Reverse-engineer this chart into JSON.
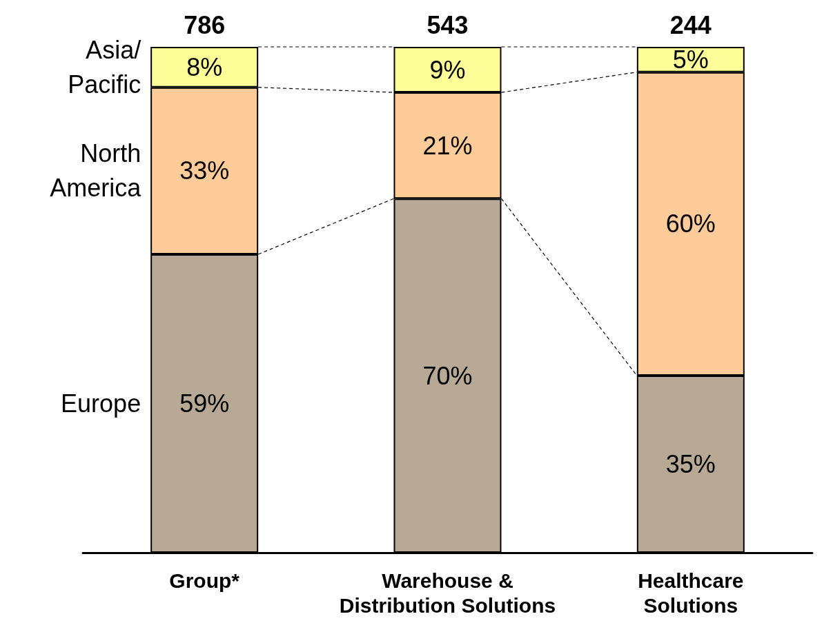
{
  "chart_data": {
    "type": "bar",
    "stacked": true,
    "categories": [
      "Group*",
      "Warehouse &\nDistribution Solutions",
      "Healthcare\nSolutions"
    ],
    "series": [
      {
        "name": "Europe",
        "color": "#b8a996",
        "values": [
          59,
          70,
          35
        ],
        "value_labels": [
          "59%",
          "70%",
          "35%"
        ]
      },
      {
        "name": "North\nAmerica",
        "color": "#ffcc99",
        "values": [
          33,
          21,
          60
        ],
        "value_labels": [
          "33%",
          "21%",
          "60%"
        ]
      },
      {
        "name": "Asia/\nPacific",
        "color": "#ffff99",
        "values": [
          8,
          9,
          5
        ],
        "value_labels": [
          "8%",
          "9%",
          "5%"
        ]
      }
    ],
    "annotations": [
      {
        "text": "786",
        "x": "Group*",
        "y": 100
      },
      {
        "text": "543",
        "x": "Warehouse &\nDistribution Solutions",
        "y": 100
      },
      {
        "text": "244",
        "x": "Healthcare\nSolutions",
        "y": 100
      }
    ],
    "legend": false
  }
}
